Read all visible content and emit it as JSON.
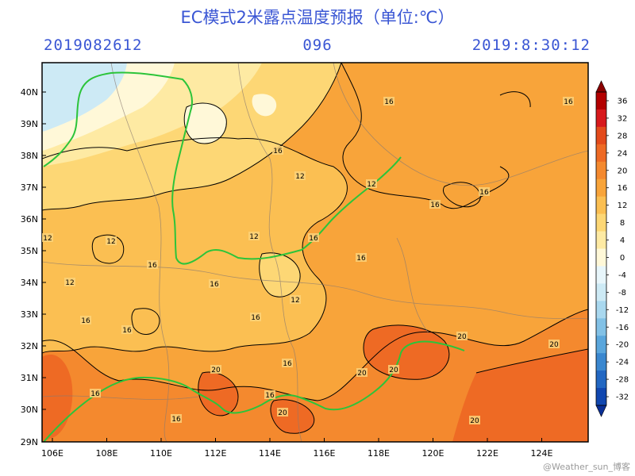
{
  "header": {
    "title": "EC模式2米露点温度预报（单位:℃）",
    "init_time": "2019082612",
    "forecast_hour": "096",
    "valid_time": "2019:8:30:12"
  },
  "axes": {
    "lat_labels": [
      "40N",
      "39N",
      "38N",
      "37N",
      "36N",
      "35N",
      "34N",
      "33N",
      "32N",
      "31N",
      "30N",
      "29N"
    ],
    "lon_labels": [
      "106E",
      "108E",
      "110E",
      "112E",
      "114E",
      "116E",
      "118E",
      "120E",
      "122E",
      "124E"
    ]
  },
  "colorbar": {
    "labels": [
      "36",
      "32",
      "28",
      "24",
      "20",
      "16",
      "12",
      "8",
      "4",
      "0",
      "-4",
      "-8",
      "-12",
      "-16",
      "-20",
      "-24",
      "-28",
      "-32"
    ],
    "colors": [
      "#b30000",
      "#d7191c",
      "#e34a1b",
      "#ee6a24",
      "#f4892e",
      "#f8a43a",
      "#fbbf52",
      "#fdd775",
      "#feeaa3",
      "#fff8d8",
      "#e8f6fb",
      "#cdeaf5",
      "#a9d8ef",
      "#82c1e6",
      "#5aa6dc",
      "#3a87cf",
      "#2267c2",
      "#1147b0"
    ]
  },
  "contour_labels": [
    {
      "text": "16"
    },
    {
      "text": "16"
    },
    {
      "text": "16"
    },
    {
      "text": "12"
    },
    {
      "text": "12"
    },
    {
      "text": "16"
    },
    {
      "text": "16"
    },
    {
      "text": "12"
    },
    {
      "text": "12"
    },
    {
      "text": "16"
    },
    {
      "text": "12"
    },
    {
      "text": "12"
    },
    {
      "text": "16"
    },
    {
      "text": "16"
    },
    {
      "text": "16"
    },
    {
      "text": "12"
    },
    {
      "text": "16"
    },
    {
      "text": "16"
    },
    {
      "text": "16"
    },
    {
      "text": "16"
    },
    {
      "text": "20"
    },
    {
      "text": "20"
    },
    {
      "text": "20"
    },
    {
      "text": "20"
    },
    {
      "text": "20"
    },
    {
      "text": "16"
    },
    {
      "text": "16"
    },
    {
      "text": "20"
    },
    {
      "text": "16"
    },
    {
      "text": "20"
    }
  ],
  "watermark": "@Weather_sun_博客"
}
